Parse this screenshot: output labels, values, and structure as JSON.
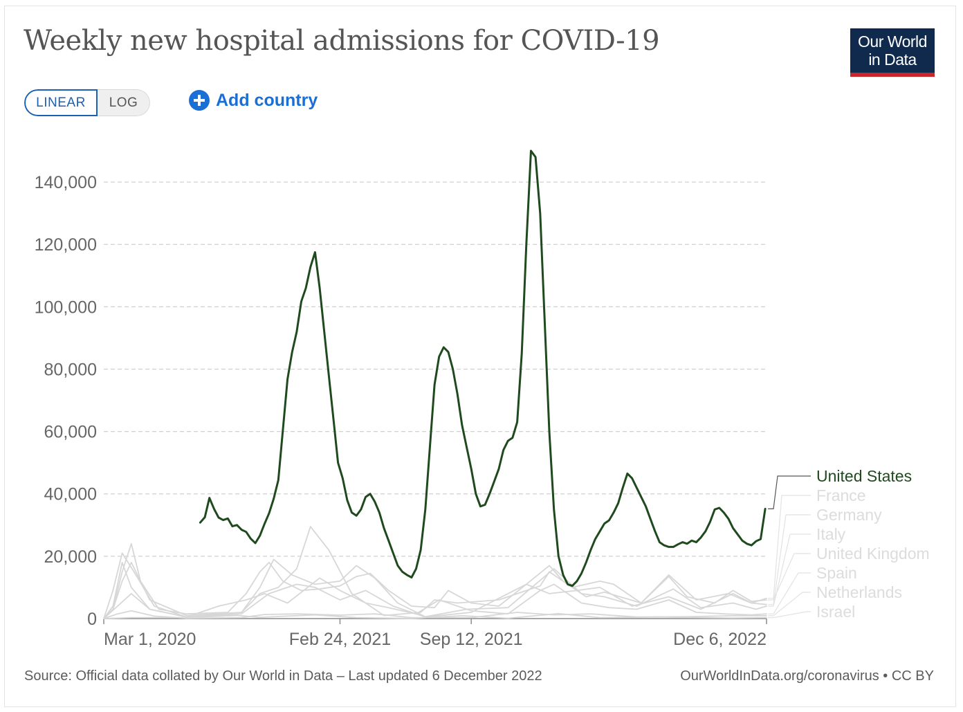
{
  "title": "Weekly new hospital admissions for COVID-19",
  "logo": {
    "line1": "Our World",
    "line2": "in Data"
  },
  "controls": {
    "linear_label": "LINEAR",
    "log_label": "LOG",
    "add_country_label": "Add country"
  },
  "footer": {
    "source": "Source: Official data collated by Our World in Data – Last updated 6 December 2022",
    "credit": "OurWorldInData.org/coronavirus • CC BY"
  },
  "colors": {
    "highlight": "#1f4a1e",
    "muted": "#d7d7d7",
    "muted_label": "#dcdcdc",
    "grid": "#d0d0d0",
    "axis_text": "#666666",
    "title": "#555555",
    "accent": "#1a6fd6"
  },
  "chart_data": {
    "type": "line",
    "title": "Weekly new hospital admissions for COVID-19",
    "xlabel": "",
    "ylabel": "",
    "ylim": [
      0,
      154000
    ],
    "xlim": [
      "2020-03-01",
      "2022-12-06"
    ],
    "y_ticks": [
      0,
      20000,
      40000,
      60000,
      80000,
      100000,
      120000,
      140000
    ],
    "y_tick_labels": [
      "0",
      "20,000",
      "40,000",
      "60,000",
      "80,000",
      "100,000",
      "120,000",
      "140,000"
    ],
    "x_tick_labels": [
      "Mar 1, 2020",
      "Feb 24, 2021",
      "Sep 12, 2021",
      "Dec 6, 2022"
    ],
    "x_ticks": [
      "2020-03-01",
      "2021-02-24",
      "2021-09-12",
      "2022-12-06"
    ],
    "grid": "horizontal dashed",
    "legend": "right, labels at line ends",
    "highlighted_series": "United States",
    "series": [
      {
        "name": "United States",
        "x": [
          "2020-07-26",
          "2020-08-02",
          "2020-08-09",
          "2020-08-16",
          "2020-08-23",
          "2020-08-30",
          "2020-09-06",
          "2020-09-13",
          "2020-09-20",
          "2020-09-27",
          "2020-10-04",
          "2020-10-11",
          "2020-10-18",
          "2020-10-25",
          "2020-11-01",
          "2020-11-08",
          "2020-11-15",
          "2020-11-22",
          "2020-11-29",
          "2020-12-06",
          "2020-12-13",
          "2020-12-20",
          "2020-12-27",
          "2021-01-03",
          "2021-01-10",
          "2021-01-17",
          "2021-01-24",
          "2021-01-31",
          "2021-02-07",
          "2021-02-14",
          "2021-02-21",
          "2021-02-28",
          "2021-03-07",
          "2021-03-14",
          "2021-03-21",
          "2021-03-28",
          "2021-04-04",
          "2021-04-11",
          "2021-04-18",
          "2021-04-25",
          "2021-05-02",
          "2021-05-09",
          "2021-05-16",
          "2021-05-23",
          "2021-05-30",
          "2021-06-06",
          "2021-06-13",
          "2021-06-20",
          "2021-06-27",
          "2021-07-04",
          "2021-07-11",
          "2021-07-18",
          "2021-07-25",
          "2021-08-01",
          "2021-08-08",
          "2021-08-15",
          "2021-08-22",
          "2021-08-29",
          "2021-09-05",
          "2021-09-12",
          "2021-09-19",
          "2021-09-26",
          "2021-10-03",
          "2021-10-10",
          "2021-10-17",
          "2021-10-24",
          "2021-10-31",
          "2021-11-07",
          "2021-11-14",
          "2021-11-21",
          "2021-11-28",
          "2021-12-05",
          "2021-12-12",
          "2021-12-19",
          "2021-12-26",
          "2022-01-02",
          "2022-01-09",
          "2022-01-16",
          "2022-01-23",
          "2022-01-30",
          "2022-02-06",
          "2022-02-13",
          "2022-02-20",
          "2022-02-27",
          "2022-03-06",
          "2022-03-13",
          "2022-03-20",
          "2022-03-27",
          "2022-04-03",
          "2022-04-10",
          "2022-04-17",
          "2022-04-24",
          "2022-05-01",
          "2022-05-08",
          "2022-05-15",
          "2022-05-22",
          "2022-05-29",
          "2022-06-05",
          "2022-06-12",
          "2022-06-19",
          "2022-06-26",
          "2022-07-03",
          "2022-07-10",
          "2022-07-17",
          "2022-07-24",
          "2022-07-31",
          "2022-08-07",
          "2022-08-14",
          "2022-08-21",
          "2022-08-28",
          "2022-09-04",
          "2022-09-11",
          "2022-09-18",
          "2022-09-25",
          "2022-10-02",
          "2022-10-09",
          "2022-10-16",
          "2022-10-23",
          "2022-10-30",
          "2022-11-06",
          "2022-11-13",
          "2022-11-20",
          "2022-11-27",
          "2022-12-04"
        ],
        "values": [
          30800,
          32500,
          38700,
          35200,
          32400,
          31600,
          32100,
          29600,
          30000,
          28500,
          27800,
          25600,
          24200,
          26600,
          30400,
          33800,
          38500,
          44400,
          60500,
          76800,
          85400,
          92000,
          101700,
          106000,
          112800,
          117500,
          106000,
          92000,
          78000,
          64000,
          50000,
          45000,
          38000,
          34000,
          33000,
          35000,
          39000,
          40000,
          37500,
          34000,
          29000,
          25000,
          21000,
          17000,
          15000,
          14000,
          13200,
          16000,
          22000,
          35000,
          55000,
          75000,
          84000,
          87000,
          85500,
          80000,
          72000,
          62000,
          55000,
          48000,
          40000,
          36000,
          36500,
          40000,
          44000,
          48000,
          54000,
          57000,
          58000,
          63000,
          85000,
          120000,
          150000,
          148000,
          130000,
          95000,
          60000,
          35000,
          20000,
          14000,
          11000,
          10500,
          12000,
          14500,
          18000,
          22000,
          25500,
          28000,
          30500,
          31500,
          34000,
          37000,
          42000,
          46500,
          45000,
          42000,
          39000,
          36000,
          32000,
          28000,
          24500,
          23500,
          23000,
          23000,
          23800,
          24500,
          24000,
          25000,
          24500,
          26000,
          28000,
          31000,
          35000,
          35500,
          34000,
          32000,
          29000,
          27000,
          25000,
          24000,
          23500,
          24800,
          25500,
          35200
        ]
      },
      {
        "name": "France",
        "x": [
          "2020-03-01",
          "2020-03-15",
          "2020-03-29",
          "2020-04-12",
          "2020-04-26",
          "2020-05-24",
          "2020-07-05",
          "2020-09-06",
          "2020-10-04",
          "2020-10-25",
          "2020-11-08",
          "2020-11-29",
          "2020-12-27",
          "2021-01-24",
          "2021-02-24",
          "2021-03-21",
          "2021-04-11",
          "2021-05-09",
          "2021-06-13",
          "2021-07-18",
          "2021-08-08",
          "2021-09-12",
          "2021-10-24",
          "2021-12-05",
          "2022-01-09",
          "2022-01-30",
          "2022-03-06",
          "2022-04-03",
          "2022-05-29",
          "2022-07-10",
          "2022-08-21",
          "2022-10-09",
          "2022-11-13",
          "2022-12-06"
        ],
        "values": [
          0,
          3000,
          15000,
          24000,
          12000,
          3000,
          1500,
          2000,
          8000,
          15000,
          18000,
          12000,
          9000,
          9500,
          10500,
          13500,
          14500,
          9000,
          4000,
          3500,
          9000,
          5000,
          4000,
          11000,
          17000,
          12000,
          7000,
          8500,
          5000,
          14000,
          6000,
          8000,
          5000,
          6500
        ]
      },
      {
        "name": "Germany",
        "x": [
          "2020-03-01",
          "2020-03-22",
          "2020-04-12",
          "2020-05-10",
          "2020-07-05",
          "2020-09-27",
          "2020-11-08",
          "2020-12-20",
          "2021-01-17",
          "2021-02-24",
          "2021-04-04",
          "2021-05-16",
          "2021-07-04",
          "2021-09-12",
          "2021-11-07",
          "2021-12-05",
          "2022-01-09",
          "2022-02-20",
          "2022-03-27",
          "2022-05-15",
          "2022-07-10",
          "2022-08-28",
          "2022-10-16",
          "2022-11-13",
          "2022-12-06"
        ],
        "values": [
          0,
          4000,
          8000,
          3000,
          500,
          1500,
          8000,
          11000,
          10000,
          6000,
          9000,
          4000,
          500,
          2000,
          8000,
          11000,
          8000,
          9000,
          10000,
          4000,
          7000,
          3000,
          8000,
          5000,
          4500
        ]
      },
      {
        "name": "Italy",
        "x": [
          "2020-03-01",
          "2020-03-15",
          "2020-03-29",
          "2020-04-19",
          "2020-05-17",
          "2020-07-05",
          "2020-09-27",
          "2020-10-25",
          "2020-11-15",
          "2020-12-13",
          "2021-01-17",
          "2021-02-24",
          "2021-03-21",
          "2021-04-18",
          "2021-05-23",
          "2021-07-04",
          "2021-09-05",
          "2021-11-07",
          "2021-12-19",
          "2022-01-16",
          "2022-02-27",
          "2022-04-03",
          "2022-05-22",
          "2022-07-17",
          "2022-08-28",
          "2022-10-16",
          "2022-11-20",
          "2022-12-06"
        ],
        "values": [
          0,
          9000,
          21000,
          14000,
          4000,
          500,
          2000,
          10000,
          19000,
          14000,
          11000,
          12000,
          17000,
          13000,
          5000,
          600,
          3000,
          3500,
          11000,
          16000,
          8000,
          7000,
          4000,
          9500,
          3500,
          5000,
          3000,
          4000
        ]
      },
      {
        "name": "United Kingdom",
        "x": [
          "2020-03-01",
          "2020-03-15",
          "2020-03-29",
          "2020-04-12",
          "2020-05-10",
          "2020-07-05",
          "2020-09-27",
          "2020-10-25",
          "2020-11-22",
          "2020-12-20",
          "2021-01-10",
          "2021-02-07",
          "2021-03-14",
          "2021-05-02",
          "2021-06-27",
          "2021-07-18",
          "2021-08-22",
          "2021-10-24",
          "2021-12-26",
          "2022-01-09",
          "2022-02-13",
          "2022-03-27",
          "2022-04-17",
          "2022-05-29",
          "2022-07-10",
          "2022-08-07",
          "2022-09-18",
          "2022-10-16",
          "2022-11-13",
          "2022-12-06"
        ],
        "values": [
          0,
          3000,
          12000,
          18000,
          6000,
          1000,
          2000,
          8000,
          10000,
          16000,
          29500,
          22000,
          8000,
          1000,
          2000,
          6000,
          5000,
          6000,
          10500,
          15000,
          10000,
          12000,
          11000,
          5000,
          13500,
          7000,
          5000,
          9000,
          5500,
          6000
        ]
      },
      {
        "name": "Spain",
        "x": [
          "2020-03-01",
          "2020-03-15",
          "2020-03-29",
          "2020-04-12",
          "2020-05-10",
          "2020-07-05",
          "2020-08-23",
          "2020-10-04",
          "2020-11-01",
          "2020-12-06",
          "2021-01-24",
          "2021-02-24",
          "2021-04-04",
          "2021-05-09",
          "2021-06-20",
          "2021-07-25",
          "2021-09-12",
          "2021-11-07",
          "2021-12-26",
          "2022-01-16",
          "2022-02-27",
          "2022-04-10",
          "2022-05-22",
          "2022-07-10",
          "2022-08-21",
          "2022-10-02",
          "2022-11-13",
          "2022-12-06"
        ],
        "values": [
          0,
          4000,
          18000,
          10000,
          3000,
          500,
          4000,
          6000,
          8000,
          5000,
          13000,
          9000,
          5000,
          3500,
          1500,
          6000,
          2500,
          1500,
          9000,
          11000,
          5000,
          3500,
          3000,
          6000,
          2000,
          1500,
          1200,
          1500
        ]
      },
      {
        "name": "Netherlands",
        "x": [
          "2020-03-01",
          "2020-03-22",
          "2020-04-12",
          "2020-05-17",
          "2020-07-05",
          "2020-09-27",
          "2020-11-01",
          "2020-12-20",
          "2021-02-24",
          "2021-04-18",
          "2021-06-13",
          "2021-09-12",
          "2021-11-21",
          "2022-01-16",
          "2022-03-13",
          "2022-05-22",
          "2022-08-07",
          "2022-10-16",
          "2022-12-06"
        ],
        "values": [
          0,
          1500,
          2500,
          800,
          100,
          300,
          1300,
          1500,
          1100,
          1500,
          300,
          300,
          2000,
          1200,
          1500,
          500,
          600,
          900,
          900
        ]
      },
      {
        "name": "Israel",
        "x": [
          "2020-03-01",
          "2020-04-12",
          "2020-07-05",
          "2020-09-20",
          "2020-10-25",
          "2021-01-17",
          "2021-03-21",
          "2021-06-13",
          "2021-08-29",
          "2021-11-07",
          "2022-01-23",
          "2022-03-27",
          "2022-06-26",
          "2022-08-21",
          "2022-10-16",
          "2022-12-06"
        ],
        "values": [
          0,
          300,
          300,
          1000,
          400,
          1200,
          300,
          50,
          900,
          100,
          1600,
          300,
          500,
          300,
          200,
          300
        ]
      }
    ]
  }
}
